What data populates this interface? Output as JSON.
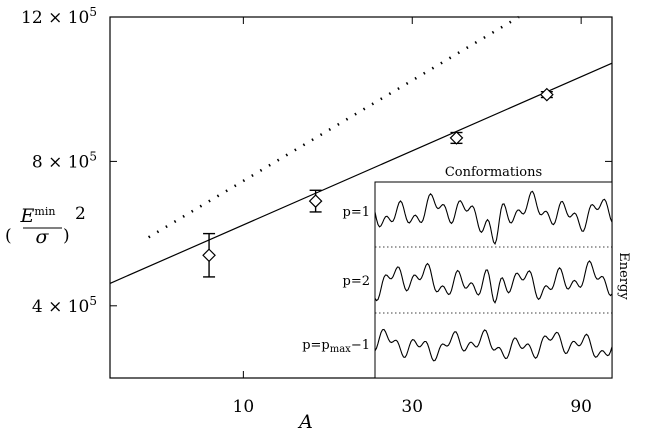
{
  "chart_data": [
    {
      "type": "scatter",
      "title": "",
      "xlabel": "A",
      "ylabel_parts": {
        "numerator": "E",
        "superscript": "min",
        "denominator": "σ",
        "power": "2"
      },
      "xscale": "log",
      "xlim": [
        4.2,
        110
      ],
      "ylim": [
        200000,
        1200000
      ],
      "xticks": [
        {
          "value": 10,
          "label": "10"
        },
        {
          "value": 30,
          "label": "30"
        },
        {
          "value": 90,
          "label": "90"
        }
      ],
      "yticks": [
        {
          "value": 400000,
          "mantissa": "4",
          "exp": "5"
        },
        {
          "value": 800000,
          "mantissa": "8",
          "exp": "5"
        },
        {
          "value": 1200000,
          "mantissa": "12",
          "exp": "5"
        }
      ],
      "tick_times": "×",
      "tick_base": "10",
      "series": [
        {
          "marker": "diamond",
          "points": [
            {
              "x": 8,
              "y": 540000,
              "err": 60000
            },
            {
              "x": 16,
              "y": 690000,
              "err": 30000
            },
            {
              "x": 40,
              "y": 865000,
              "err": 15000
            },
            {
              "x": 72,
              "y": 985000,
              "err": 8000
            }
          ]
        },
        {
          "style": "solid",
          "points": [
            {
              "x": 4.2,
              "y": 462000
            },
            {
              "x": 110,
              "y": 1072000
            }
          ]
        },
        {
          "style": "dotted",
          "points": [
            {
              "x": 5.4,
              "y": 590000
            },
            {
              "x": 60,
              "y": 1200000
            }
          ]
        }
      ]
    },
    {
      "type": "line",
      "title": "Conformations",
      "ylabel": "Energy",
      "series": [
        {
          "name": "p=1",
          "label_parts": {
            "main": "p=1"
          }
        },
        {
          "name": "p=2",
          "label_parts": {
            "main": "p=2"
          }
        },
        {
          "name": "p=p_max-1",
          "label_parts": {
            "main": "p=p",
            "sub": "max",
            "suffix": "−1"
          }
        }
      ]
    }
  ]
}
